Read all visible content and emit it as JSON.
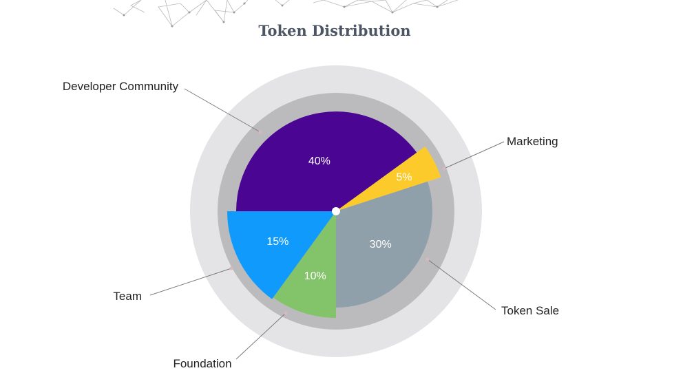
{
  "chart_data": {
    "type": "pie",
    "title": "Token Distribution",
    "slices": [
      {
        "label": "Developer Community",
        "value": 40,
        "value_label": "40%",
        "color": "#4a0592"
      },
      {
        "label": "Marketing",
        "value": 5,
        "value_label": "5%",
        "color": "#fccb2b"
      },
      {
        "label": "Token Sale",
        "value": 30,
        "value_label": "30%",
        "color": "#8fa0aa"
      },
      {
        "label": "Foundation",
        "value": 10,
        "value_label": "10%",
        "color": "#83c36a"
      },
      {
        "label": "Team",
        "value": 15,
        "value_label": "15%",
        "color": "#109bfc"
      }
    ],
    "legend": "callout labels with leader lines",
    "background_rings": [
      "#e4e4e6",
      "#bbbbbe"
    ]
  }
}
